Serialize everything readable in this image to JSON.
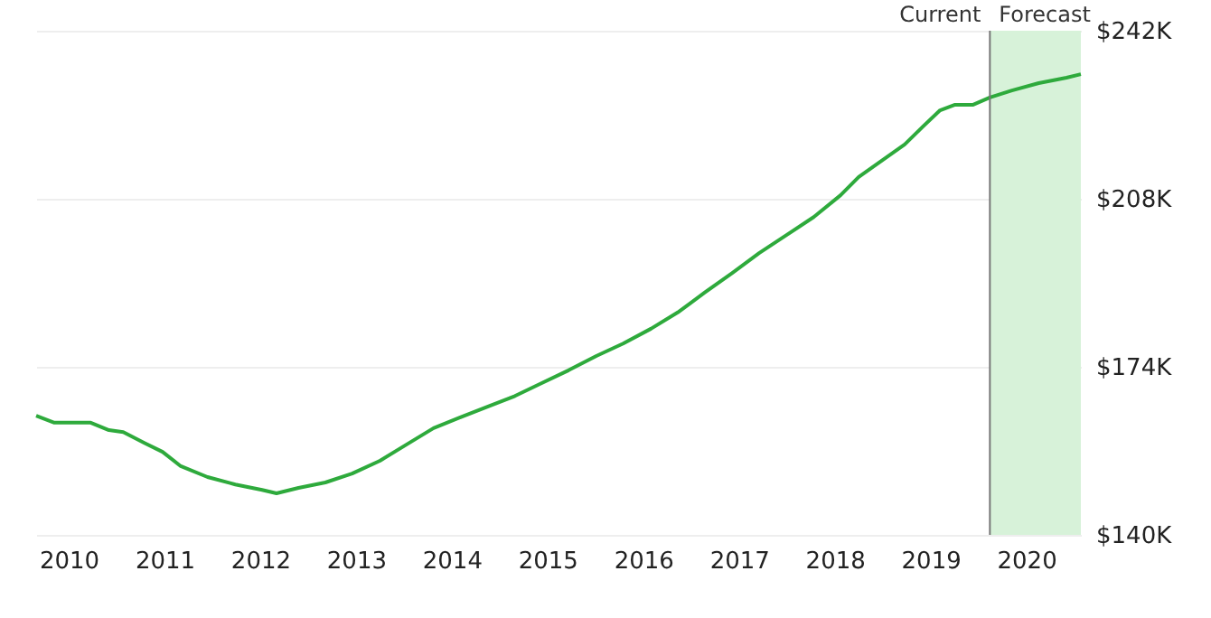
{
  "chart_data": {
    "type": "line",
    "x": [
      2009.66,
      2009.85,
      2010.0,
      2010.23,
      2010.42,
      2010.57,
      2010.79,
      2010.98,
      2011.17,
      2011.45,
      2011.74,
      2012.02,
      2012.17,
      2012.4,
      2012.68,
      2012.96,
      2013.25,
      2013.53,
      2013.81,
      2014.09,
      2014.38,
      2014.66,
      2014.94,
      2015.22,
      2015.51,
      2015.79,
      2016.08,
      2016.36,
      2016.64,
      2016.93,
      2017.21,
      2017.5,
      2017.78,
      2018.06,
      2018.25,
      2018.54,
      2018.73,
      2018.92,
      2019.1,
      2019.25,
      2019.44,
      2019.62,
      2019.85,
      2020.13,
      2020.42,
      2020.57
    ],
    "series": [
      {
        "color": "#2eaa3c",
        "values": [
          164.1,
          162.7,
          162.7,
          162.7,
          161.2,
          160.8,
          158.6,
          156.8,
          153.9,
          151.7,
          150.2,
          149.1,
          148.4,
          149.5,
          150.6,
          152.4,
          155.0,
          158.3,
          161.6,
          163.8,
          166.0,
          168.1,
          170.7,
          173.3,
          176.2,
          178.7,
          181.7,
          185.0,
          189.0,
          193.0,
          197.0,
          200.7,
          204.3,
          208.7,
          212.4,
          216.4,
          219.0,
          222.6,
          225.9,
          227.0,
          227.0,
          228.5,
          229.9,
          231.4,
          232.5,
          233.2
        ]
      }
    ],
    "xlim": [
      2009.66,
      2020.57
    ],
    "xticks": [
      2010,
      2011,
      2012,
      2013,
      2014,
      2015,
      2016,
      2017,
      2018,
      2019,
      2020
    ],
    "ylim": [
      140,
      242
    ],
    "yticks": [
      {
        "value": 140,
        "label": "$140K"
      },
      {
        "value": 174,
        "label": "$174K"
      },
      {
        "value": 208,
        "label": "$208K"
      },
      {
        "value": 242,
        "label": "$242K"
      }
    ],
    "grid": "y",
    "line_style": "solid",
    "marker": "none",
    "ref_lines": [
      {
        "axis": "x",
        "value": 2019.62,
        "label": "Current",
        "color": "#777777"
      }
    ],
    "bands": [
      {
        "axis": "x",
        "from": 2019.62,
        "to": 2020.57,
        "label": "Forecast",
        "color": "#d7f2d9"
      }
    ]
  }
}
